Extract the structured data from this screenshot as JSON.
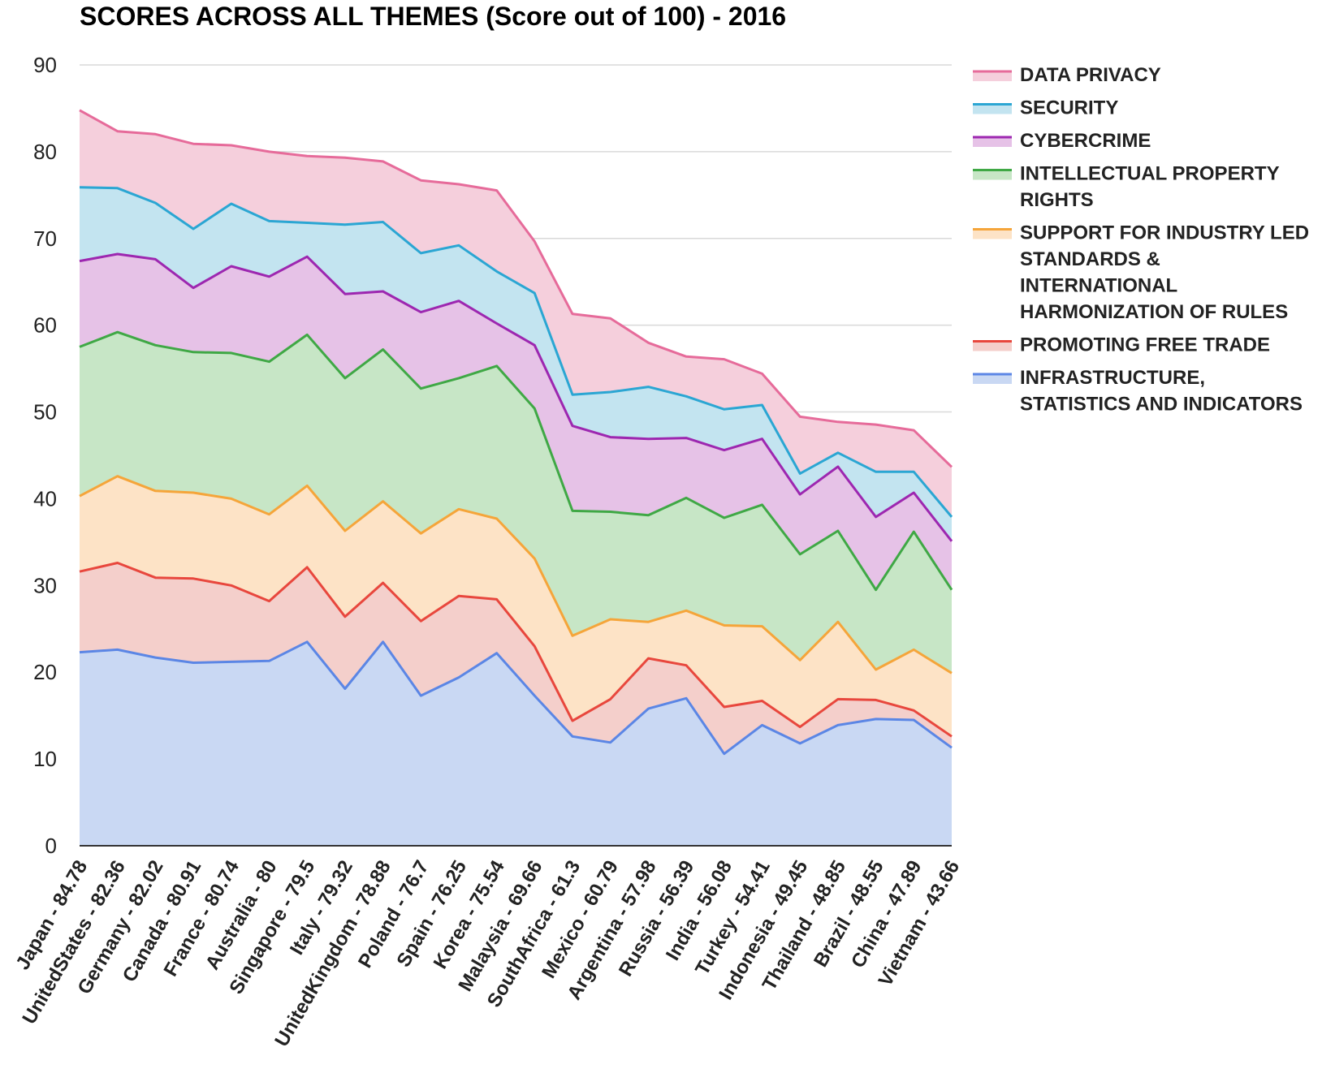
{
  "chart_data": {
    "type": "area",
    "stacked": true,
    "title": "SCORES ACROSS ALL THEMES (Score out of 100) - 2016",
    "xlabel": "",
    "ylabel": "",
    "ylim": [
      0,
      90
    ],
    "yticks": [
      0,
      10,
      20,
      30,
      40,
      50,
      60,
      70,
      80,
      90
    ],
    "grid": true,
    "legend_position": "right",
    "categories": [
      "Japan - 84.78",
      "UnitedStates - 82.36",
      "Germany - 82.02",
      "Canada - 80.91",
      "France - 80.74",
      "Australia - 80",
      "Singapore - 79.5",
      "Italy - 79.32",
      "UnitedKingdom - 78.88",
      "Poland - 76.7",
      "Spain - 76.25",
      "Korea - 75.54",
      "Malaysia - 69.66",
      "SouthAfrica - 61.3",
      "Mexico - 60.79",
      "Argentina - 57.98",
      "Russia - 56.39",
      "India - 56.08",
      "Turkey - 54.41",
      "Indonesia - 49.45",
      "Thailand - 48.85",
      "Brazil - 48.55",
      "China - 47.89",
      "Vietnam - 43.66"
    ],
    "series": [
      {
        "name": "INFRASTRUCTURE, STATISTICS AND INDICATORS",
        "name_lines": [
          "INFRASTRUCTURE,",
          "STATISTICS AND INDICATORS"
        ],
        "color": "#5b86e5",
        "fill": "#c9d8f3",
        "cumulative": [
          22.3,
          22.6,
          21.7,
          21.1,
          21.2,
          21.3,
          23.5,
          18.1,
          23.5,
          17.3,
          19.4,
          22.2,
          17.3,
          12.6,
          11.9,
          15.8,
          17.0,
          10.6,
          13.9,
          11.8,
          13.9,
          14.6,
          14.5,
          11.3
        ]
      },
      {
        "name": "PROMOTING FREE TRADE",
        "name_lines": [
          "PROMOTING FREE TRADE"
        ],
        "color": "#e8473d",
        "fill": "#f4cfcb",
        "cumulative": [
          31.6,
          32.6,
          30.9,
          30.8,
          30.0,
          28.2,
          32.1,
          26.4,
          30.3,
          25.9,
          28.8,
          28.4,
          23.0,
          14.4,
          16.9,
          21.6,
          20.8,
          16.0,
          16.7,
          13.7,
          16.9,
          16.8,
          15.6,
          12.6
        ]
      },
      {
        "name": "SUPPORT FOR INDUSTRY LED STANDARDS & INTERNATIONAL HARMONIZATION OF RULES",
        "name_lines": [
          "SUPPORT FOR INDUSTRY LED",
          "STANDARDS &",
          "INTERNATIONAL",
          "HARMONIZATION OF RULES"
        ],
        "color": "#f5a53a",
        "fill": "#fde3c6",
        "cumulative": [
          40.3,
          42.6,
          40.9,
          40.7,
          40.0,
          38.2,
          41.5,
          36.3,
          39.7,
          36.0,
          38.8,
          37.7,
          33.1,
          24.2,
          26.1,
          25.8,
          27.1,
          25.4,
          25.3,
          21.4,
          25.8,
          20.3,
          22.6,
          19.9
        ]
      },
      {
        "name": "INTELLECTUAL PROPERTY RIGHTS",
        "name_lines": [
          "INTELLECTUAL PROPERTY",
          "RIGHTS"
        ],
        "color": "#3fa845",
        "fill": "#c7e6c6",
        "cumulative": [
          57.5,
          59.2,
          57.7,
          56.9,
          56.8,
          55.8,
          58.9,
          53.9,
          57.2,
          52.7,
          53.9,
          55.3,
          50.4,
          38.6,
          38.5,
          38.1,
          40.1,
          37.8,
          39.3,
          33.6,
          36.3,
          29.5,
          36.2,
          29.5
        ]
      },
      {
        "name": "CYBERCRIME",
        "name_lines": [
          "CYBERCRIME"
        ],
        "color": "#9d27b0",
        "fill": "#e6c2e7",
        "cumulative": [
          67.4,
          68.2,
          67.6,
          64.3,
          66.8,
          65.6,
          67.9,
          63.6,
          63.9,
          61.5,
          62.8,
          60.2,
          57.7,
          48.4,
          47.1,
          46.9,
          47.0,
          45.6,
          46.9,
          40.5,
          43.7,
          37.9,
          40.7,
          35.1
        ]
      },
      {
        "name": "SECURITY",
        "name_lines": [
          "SECURITY"
        ],
        "color": "#2ba6d3",
        "fill": "#c3e4f0",
        "cumulative": [
          75.9,
          75.8,
          74.1,
          71.1,
          74.0,
          72.0,
          71.8,
          71.6,
          71.9,
          68.3,
          69.2,
          66.2,
          63.7,
          52.0,
          52.3,
          52.9,
          51.8,
          50.3,
          50.8,
          42.9,
          45.3,
          43.1,
          43.1,
          37.9
        ]
      },
      {
        "name": "DATA PRIVACY",
        "name_lines": [
          "DATA PRIVACY"
        ],
        "color": "#e66b9a",
        "fill": "#f5cfdc",
        "cumulative": [
          84.78,
          82.36,
          82.02,
          80.91,
          80.74,
          80.0,
          79.5,
          79.32,
          78.88,
          76.7,
          76.25,
          75.54,
          69.66,
          61.3,
          60.79,
          57.98,
          56.39,
          56.08,
          54.41,
          49.45,
          48.85,
          48.55,
          47.89,
          43.66
        ]
      }
    ]
  }
}
